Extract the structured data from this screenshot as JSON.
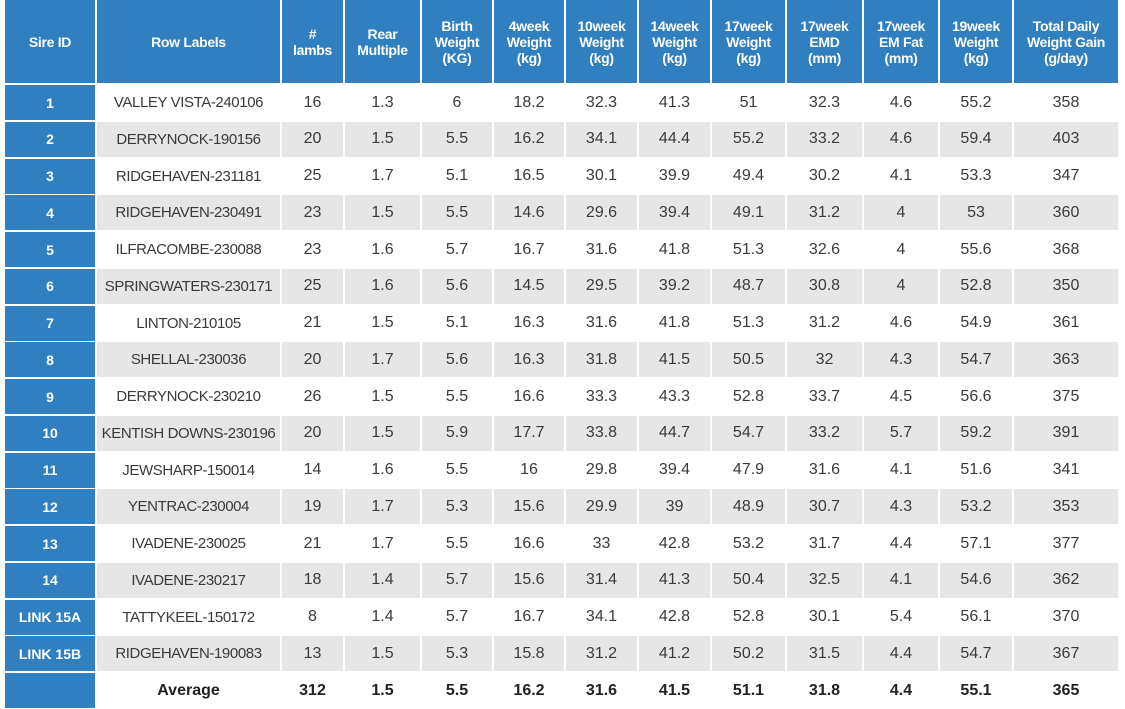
{
  "table": {
    "headers": [
      "Sire ID",
      "Row Labels",
      "#\nlambs",
      "Rear\nMultiple",
      "Birth\nWeight\n(KG)",
      "4week\nWeight\n(kg)",
      "10week\nWeight\n(kg)",
      "14week\nWeight\n(kg)",
      "17week\nWeight\n(kg)",
      "17week\nEMD\n(mm)",
      "17week\nEM Fat\n(mm)",
      "19week\nWeight\n(kg)",
      "Total Daily\nWeight Gain\n(g/day)"
    ],
    "rows": [
      [
        "1",
        "VALLEY VISTA-240106",
        16,
        1.3,
        6,
        18.2,
        32.3,
        41.3,
        51,
        32.3,
        4.6,
        55.2,
        358
      ],
      [
        "2",
        "DERRYNOCK-190156",
        20,
        1.5,
        5.5,
        16.2,
        34.1,
        44.4,
        55.2,
        33.2,
        4.6,
        59.4,
        403
      ],
      [
        "3",
        "RIDGEHAVEN-231181",
        25,
        1.7,
        5.1,
        16.5,
        30.1,
        39.9,
        49.4,
        30.2,
        4.1,
        53.3,
        347
      ],
      [
        "4",
        "RIDGEHAVEN-230491",
        23,
        1.5,
        5.5,
        14.6,
        29.6,
        39.4,
        49.1,
        31.2,
        4,
        53,
        360
      ],
      [
        "5",
        "ILFRACOMBE-230088",
        23,
        1.6,
        5.7,
        16.7,
        31.6,
        41.8,
        51.3,
        32.6,
        4,
        55.6,
        368
      ],
      [
        "6",
        "SPRINGWATERS-230171",
        25,
        1.6,
        5.6,
        14.5,
        29.5,
        39.2,
        48.7,
        30.8,
        4,
        52.8,
        350
      ],
      [
        "7",
        "LINTON-210105",
        21,
        1.5,
        5.1,
        16.3,
        31.6,
        41.8,
        51.3,
        31.2,
        4.6,
        54.9,
        361
      ],
      [
        "8",
        "SHELLAL-230036",
        20,
        1.7,
        5.6,
        16.3,
        31.8,
        41.5,
        50.5,
        32,
        4.3,
        54.7,
        363
      ],
      [
        "9",
        "DERRYNOCK-230210",
        26,
        1.5,
        5.5,
        16.6,
        33.3,
        43.3,
        52.8,
        33.7,
        4.5,
        56.6,
        375
      ],
      [
        "10",
        "KENTISH DOWNS-230196",
        20,
        1.5,
        5.9,
        17.7,
        33.8,
        44.7,
        54.7,
        33.2,
        5.7,
        59.2,
        391
      ],
      [
        "11",
        "JEWSHARP-150014",
        14,
        1.6,
        5.5,
        16,
        29.8,
        39.4,
        47.9,
        31.6,
        4.1,
        51.6,
        341
      ],
      [
        "12",
        "YENTRAC-230004",
        19,
        1.7,
        5.3,
        15.6,
        29.9,
        39,
        48.9,
        30.7,
        4.3,
        53.2,
        353
      ],
      [
        "13",
        "IVADENE-230025",
        21,
        1.7,
        5.5,
        16.6,
        33,
        42.8,
        53.2,
        31.7,
        4.4,
        57.1,
        377
      ],
      [
        "14",
        "IVADENE-230217",
        18,
        1.4,
        5.7,
        15.6,
        31.4,
        41.3,
        50.4,
        32.5,
        4.1,
        54.6,
        362
      ],
      [
        "LINK 15A",
        "TATTYKEEL-150172",
        8,
        1.4,
        5.7,
        16.7,
        34.1,
        42.8,
        52.8,
        30.1,
        5.4,
        56.1,
        370
      ],
      [
        "LINK 15B",
        "RIDGEHAVEN-190083",
        13,
        1.5,
        5.3,
        15.8,
        31.2,
        41.2,
        50.2,
        31.5,
        4.4,
        54.7,
        367
      ]
    ],
    "average": {
      "label": "Average",
      "values": [
        312,
        1.5,
        5.5,
        16.2,
        31.6,
        41.5,
        51.1,
        31.8,
        4.4,
        55.1,
        365
      ]
    }
  }
}
